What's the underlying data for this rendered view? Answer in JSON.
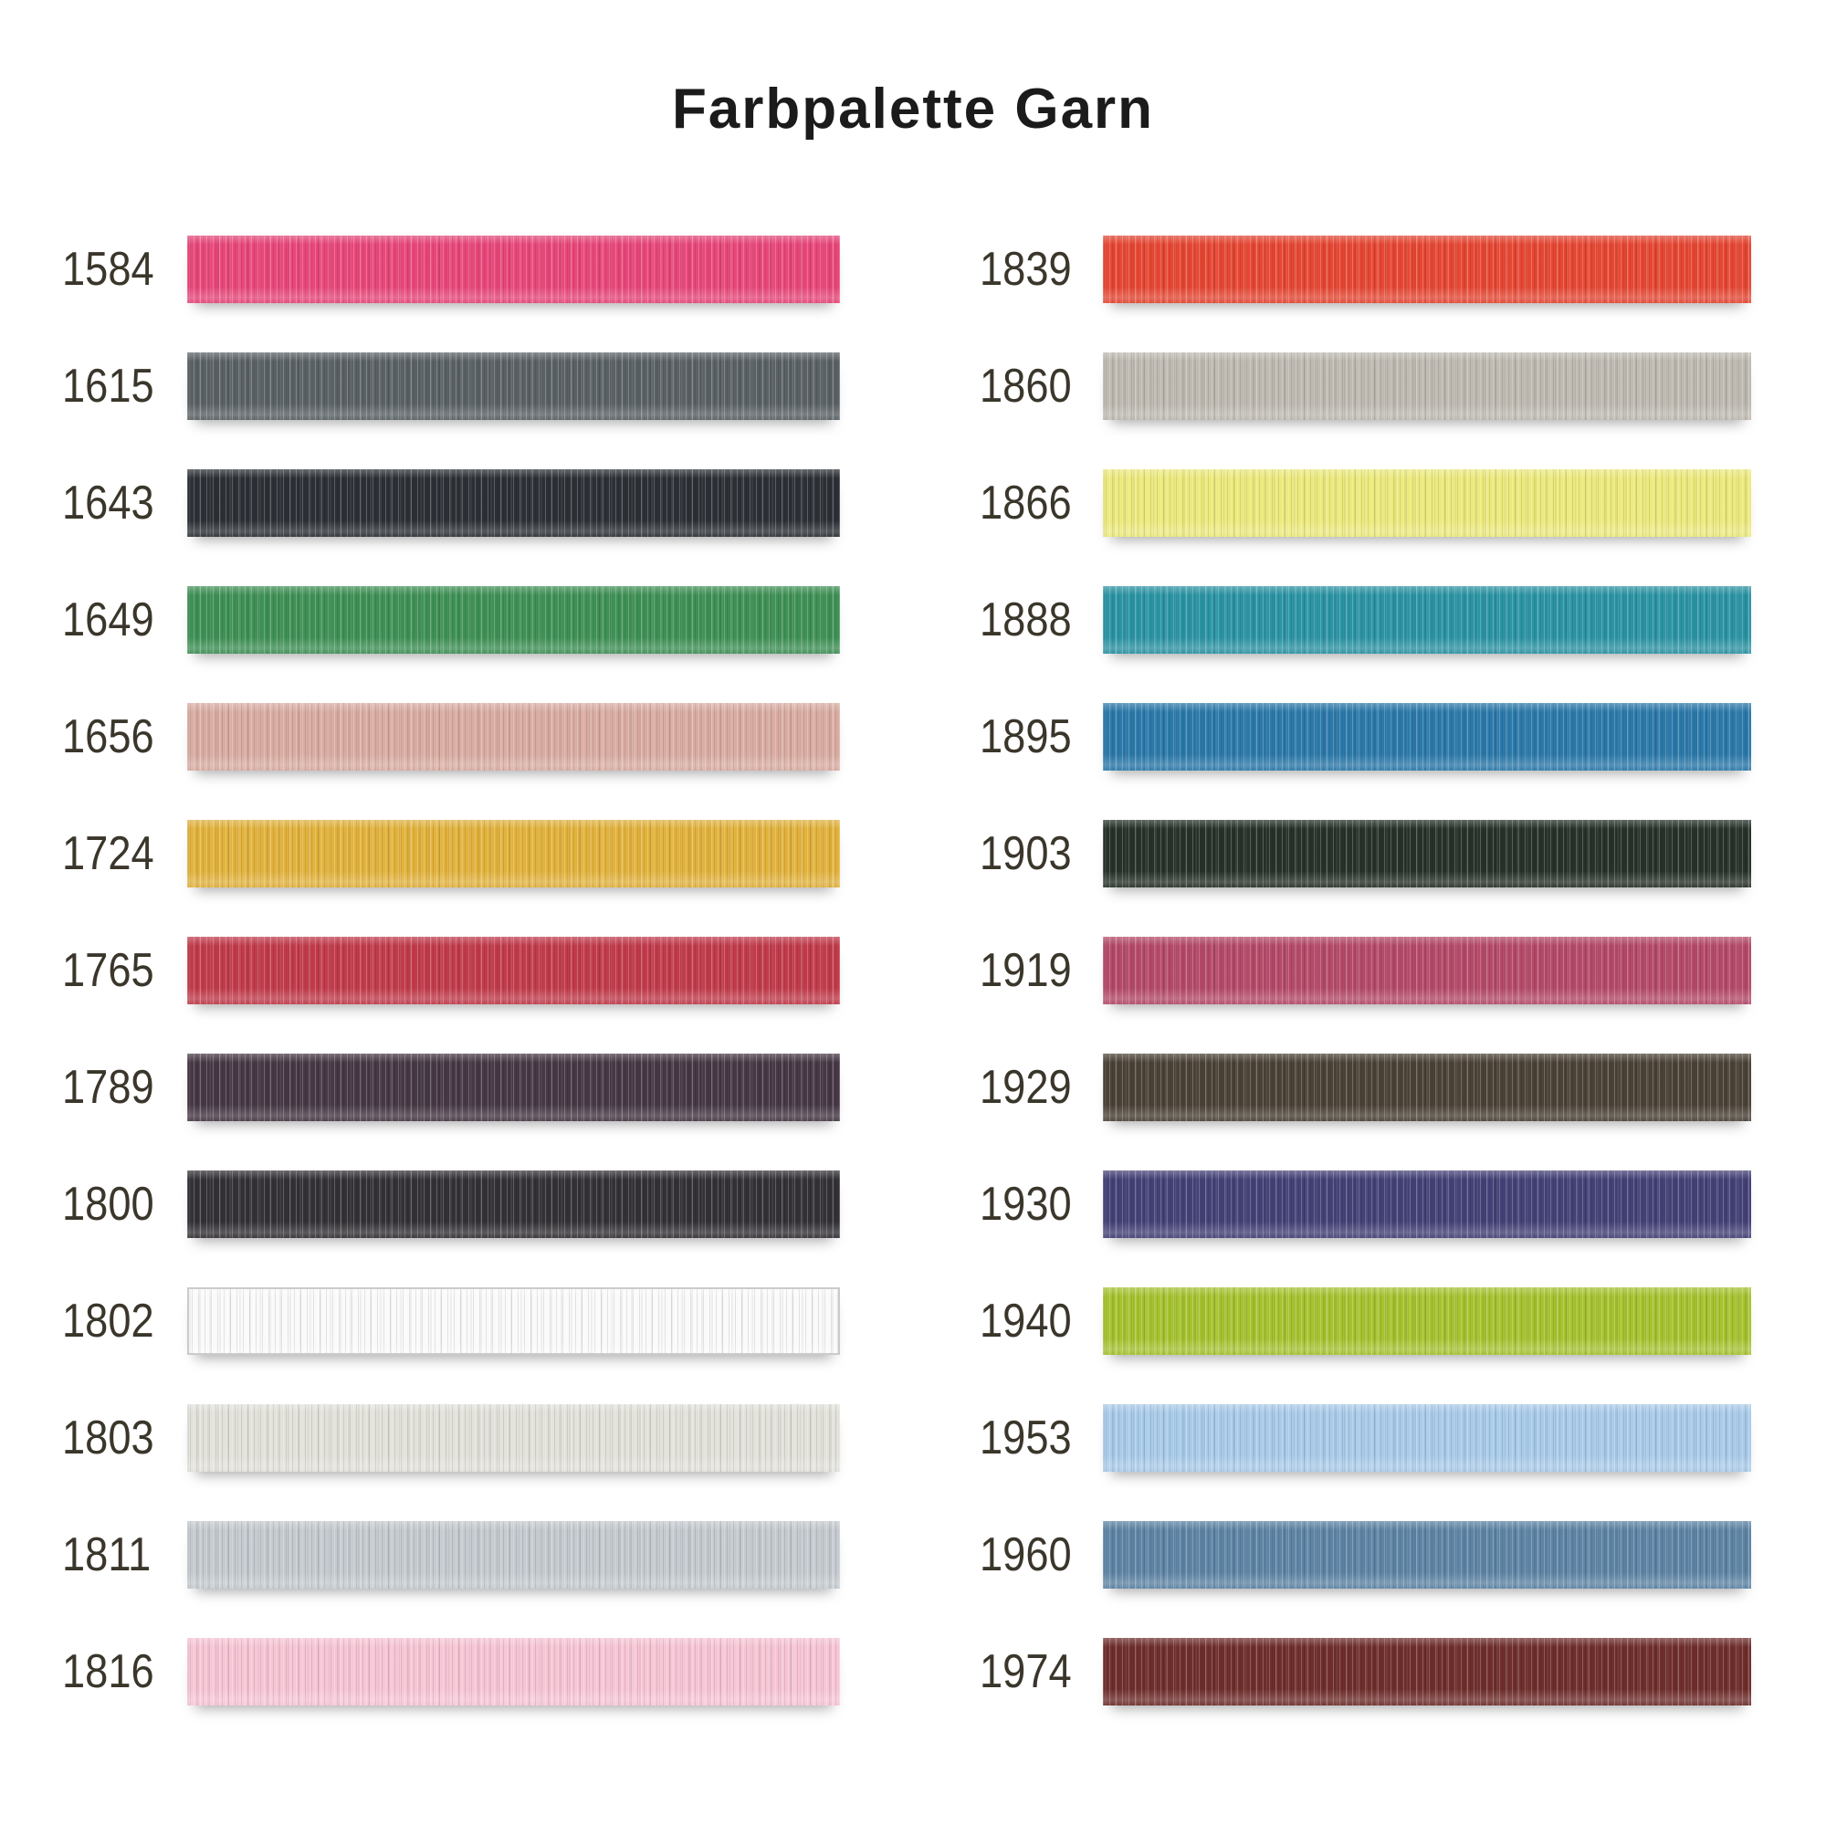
{
  "title": "Farbpalette Garn",
  "style": {
    "background": "#ffffff",
    "title_color": "#1b1b1b",
    "label_color": "#3b362b"
  },
  "palette": {
    "columns": [
      {
        "items": [
          {
            "code": "1584",
            "color": "#e8477a"
          },
          {
            "code": "1615",
            "color": "#5a6165"
          },
          {
            "code": "1643",
            "color": "#2c3036"
          },
          {
            "code": "1649",
            "color": "#3f9156"
          },
          {
            "code": "1656",
            "color": "#d9aca2"
          },
          {
            "code": "1724",
            "color": "#e2b23c"
          },
          {
            "code": "1765",
            "color": "#c23b4b"
          },
          {
            "code": "1789",
            "color": "#463845"
          },
          {
            "code": "1800",
            "color": "#343136"
          },
          {
            "code": "1802",
            "color": "#fafafa",
            "border": "#cbcbcb"
          },
          {
            "code": "1803",
            "color": "#e2e1da"
          },
          {
            "code": "1811",
            "color": "#c4cacf"
          },
          {
            "code": "1816",
            "color": "#f7c5d5"
          }
        ]
      },
      {
        "items": [
          {
            "code": "1839",
            "color": "#e64733"
          },
          {
            "code": "1860",
            "color": "#beb9b1"
          },
          {
            "code": "1866",
            "color": "#ecea7c"
          },
          {
            "code": "1888",
            "color": "#2b94a4"
          },
          {
            "code": "1895",
            "color": "#2b79aa"
          },
          {
            "code": "1903",
            "color": "#273129"
          },
          {
            "code": "1919",
            "color": "#b54a69"
          },
          {
            "code": "1929",
            "color": "#4b4237"
          },
          {
            "code": "1930",
            "color": "#444177"
          },
          {
            "code": "1940",
            "color": "#a6c32f"
          },
          {
            "code": "1953",
            "color": "#a9cbea"
          },
          {
            "code": "1960",
            "color": "#5e84a5"
          },
          {
            "code": "1974",
            "color": "#6f2e2c"
          }
        ]
      }
    ]
  }
}
